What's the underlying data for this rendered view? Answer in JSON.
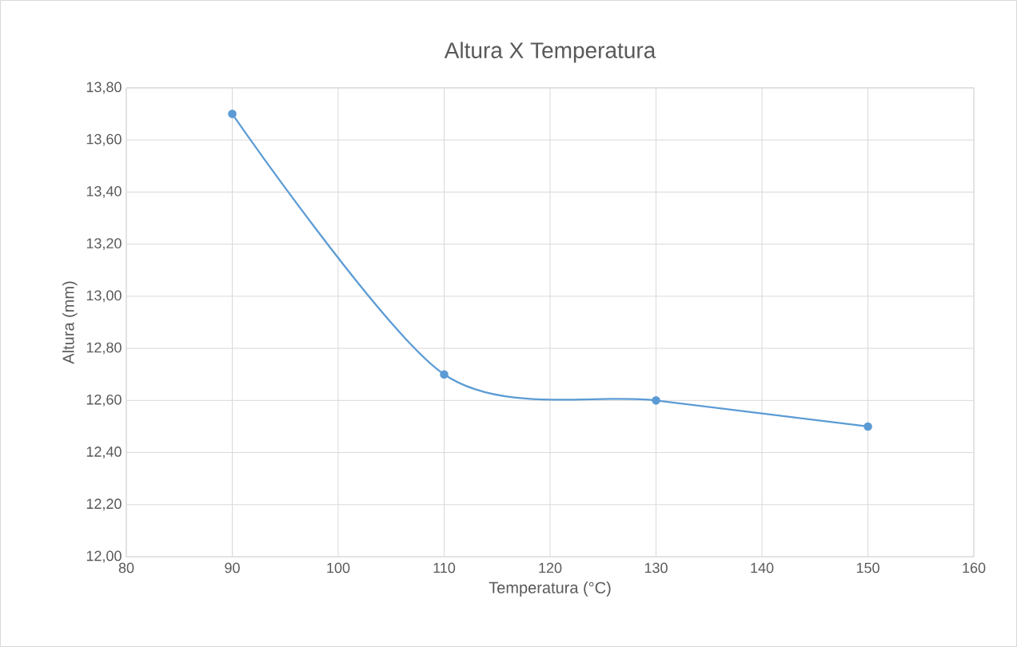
{
  "chart_data": {
    "type": "line",
    "title": "Altura X Temperatura",
    "xlabel": "Temperatura (°C)",
    "ylabel": "Altura (mm)",
    "x": [
      90,
      110,
      130,
      150
    ],
    "series": [
      {
        "color": "#5b9bd5",
        "values": [
          13.7,
          12.7,
          12.6,
          12.5
        ]
      }
    ],
    "xlim": [
      80,
      160
    ],
    "xticks": [
      80,
      90,
      100,
      110,
      120,
      130,
      140,
      150,
      160
    ],
    "ylim": [
      12.0,
      13.8
    ],
    "yticks": [
      {
        "value": 12.0,
        "label": "12,00"
      },
      {
        "value": 12.2,
        "label": "12,20"
      },
      {
        "value": 12.4,
        "label": "12,40"
      },
      {
        "value": 12.6,
        "label": "12,60"
      },
      {
        "value": 12.8,
        "label": "12,80"
      },
      {
        "value": 13.0,
        "label": "13,00"
      },
      {
        "value": 13.2,
        "label": "13,20"
      },
      {
        "value": 13.4,
        "label": "13,40"
      },
      {
        "value": 13.6,
        "label": "13,60"
      },
      {
        "value": 13.8,
        "label": "13,80"
      }
    ],
    "grid": true,
    "legend": false,
    "marker": "circle",
    "line_style": "solid"
  }
}
